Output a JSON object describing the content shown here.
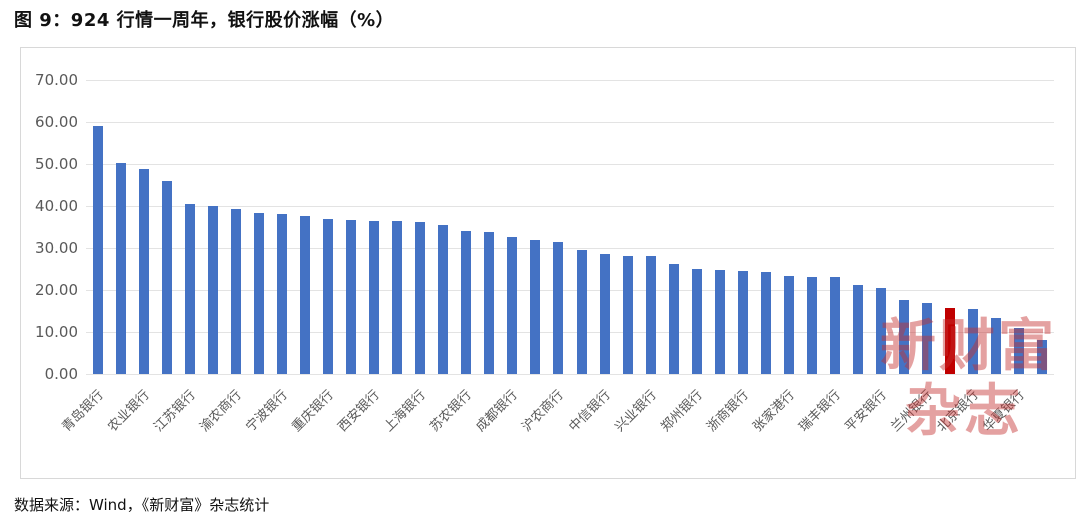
{
  "page": {
    "title": "图 9：924 行情一周年，银行股价涨幅（%）",
    "footer": "数据来源：Wind，《新财富》杂志统计"
  },
  "watermark": {
    "line1": "新财富",
    "line2": "杂志"
  },
  "colors": {
    "bar": "#4472C4",
    "highlight": "#C00000",
    "grid": "#e3e3e3",
    "axis_text": "#595959",
    "box_border": "#d8d8d8",
    "watermark": "#c53030"
  },
  "chart_data": {
    "type": "bar",
    "title": "924 行情一周年，银行股价涨幅（%）",
    "xlabel": "",
    "ylabel": "",
    "ylim": [
      0,
      70
    ],
    "ytick_step": 10,
    "yticks": [
      "70.00",
      "60.00",
      "50.00",
      "40.00",
      "30.00",
      "20.00",
      "10.00",
      "0.00"
    ],
    "grid": true,
    "legend": false,
    "bar_count": 42,
    "label_every": 2,
    "highlight_index": 37,
    "categories": [
      "青岛银行",
      "",
      "农业银行",
      "",
      "江苏银行",
      "",
      "渝农商行",
      "",
      "宁波银行",
      "",
      "重庆银行",
      "",
      "西安银行",
      "",
      "上海银行",
      "",
      "苏农银行",
      "",
      "成都银行",
      "",
      "沪农商行",
      "",
      "中信银行",
      "",
      "兴业银行",
      "",
      "郑州银行",
      "",
      "浙商银行",
      "",
      "张家港行",
      "",
      "瑞丰银行",
      "",
      "平安银行",
      "",
      "兰州银行",
      "",
      "北京银行",
      "",
      "华夏银行",
      ""
    ],
    "values": [
      59.0,
      50.2,
      48.8,
      46.0,
      40.4,
      40.0,
      39.4,
      38.3,
      38.1,
      37.7,
      37.0,
      36.7,
      36.5,
      36.4,
      36.3,
      35.5,
      34.1,
      33.7,
      32.7,
      32.0,
      31.5,
      29.6,
      28.6,
      28.2,
      28.1,
      26.2,
      25.0,
      24.8,
      24.6,
      24.4,
      23.3,
      23.2,
      23.0,
      21.3,
      20.4,
      17.6,
      16.8,
      15.7,
      15.4,
      13.3,
      11.0,
      8.1
    ]
  }
}
